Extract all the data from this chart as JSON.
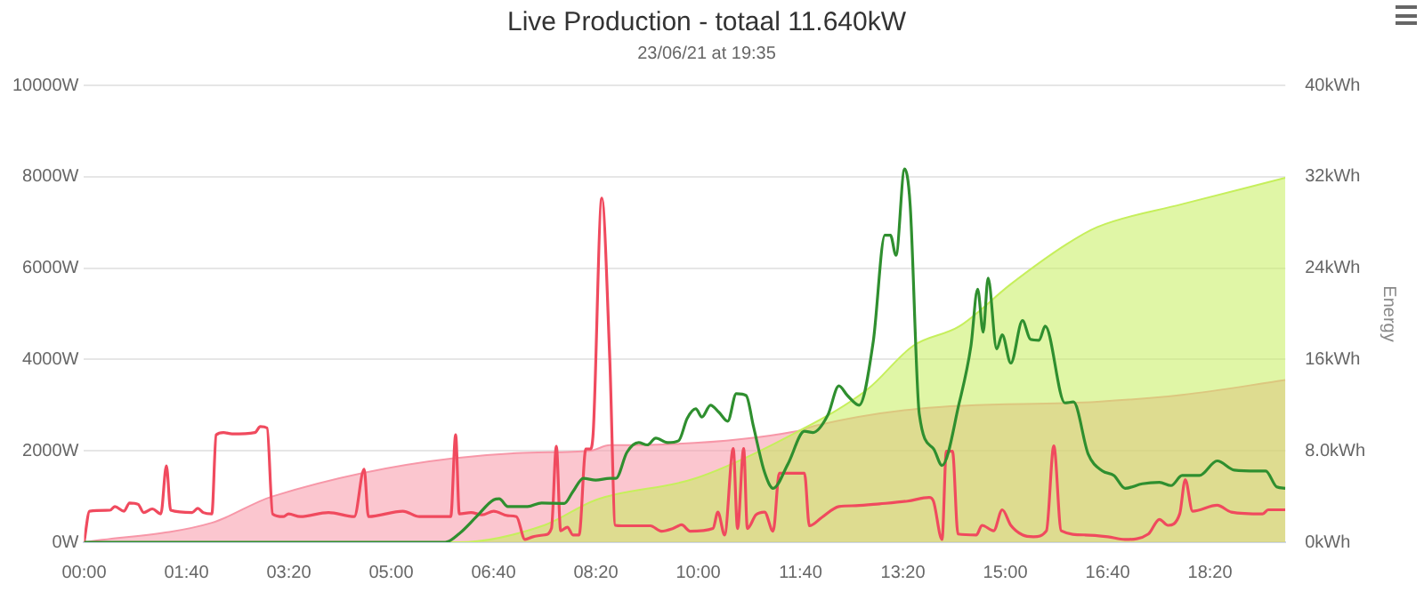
{
  "chart_data": {
    "type": "line",
    "title": "Live Production - totaal 11.640kW",
    "subtitle": "23/06/21 at 19:35",
    "y2label": "Energy",
    "xlim": [
      0,
      19.56
    ],
    "xticks": [
      {
        "value": 0,
        "label": "00:00"
      },
      {
        "value": 1.6667,
        "label": "01:40"
      },
      {
        "value": 3.3333,
        "label": "03:20"
      },
      {
        "value": 5,
        "label": "05:00"
      },
      {
        "value": 6.6667,
        "label": "06:40"
      },
      {
        "value": 8.3333,
        "label": "08:20"
      },
      {
        "value": 10,
        "label": "10:00"
      },
      {
        "value": 11.6667,
        "label": "11:40"
      },
      {
        "value": 13.3333,
        "label": "13:20"
      },
      {
        "value": 15,
        "label": "15:00"
      },
      {
        "value": 16.6667,
        "label": "16:40"
      },
      {
        "value": 18.3333,
        "label": "18:20"
      }
    ],
    "ylim": [
      0,
      10000
    ],
    "yticks": [
      {
        "value": 0,
        "label": "0W"
      },
      {
        "value": 2000,
        "label": "2000W"
      },
      {
        "value": 4000,
        "label": "4000W"
      },
      {
        "value": 6000,
        "label": "6000W"
      },
      {
        "value": 8000,
        "label": "8000W"
      },
      {
        "value": 10000,
        "label": "10000W"
      }
    ],
    "y2lim": [
      0,
      40
    ],
    "y2ticks": [
      {
        "value": 0,
        "label": "0kWh"
      },
      {
        "value": 8,
        "label": "8.0kWh"
      },
      {
        "value": 16,
        "label": "16kWh"
      },
      {
        "value": 24,
        "label": "24kWh"
      },
      {
        "value": 32,
        "label": "32kWh"
      },
      {
        "value": 40,
        "label": "40kWh"
      }
    ],
    "grid": "y",
    "legend": false,
    "marker": "none",
    "line_style": "solid",
    "series": [
      {
        "type": "area",
        "axis": "y2",
        "color": "#f797a8",
        "x": [
          0,
          2.08,
          3.06,
          7.04,
          8.24,
          8.56,
          8.66,
          11.59,
          11.9,
          13.6,
          16.5,
          17.88,
          19.56
        ],
        "values": [
          0,
          1.7,
          4.0,
          7.8,
          8.0,
          8.5,
          8.5,
          9.7,
          10.2,
          11.7,
          12.3,
          12.9,
          14.2
        ]
      },
      {
        "type": "area",
        "axis": "y2",
        "color": "#c6ef5c",
        "x": [
          0,
          5.9,
          6.1,
          7.5,
          8.33,
          9.96,
          11.59,
          12.76,
          13.5,
          14.25,
          15.09,
          16.0,
          16.5,
          17.88,
          19.56
        ],
        "values": [
          0,
          0,
          0,
          1.5,
          3.7,
          5.6,
          9.6,
          13.4,
          17.2,
          18.9,
          22.6,
          26.1,
          27.6,
          29.6,
          31.9
        ]
      },
      {
        "type": "line",
        "color": "#f04a5e",
        "x": [
          0,
          0.09,
          0.42,
          0.5,
          0.65,
          0.74,
          0.88,
          0.97,
          1.11,
          1.25,
          1.34,
          1.41,
          1.76,
          1.85,
          1.94,
          2.08,
          2.15,
          2.27,
          2.41,
          2.78,
          2.87,
          2.98,
          3.07,
          3.24,
          3.33,
          3.52,
          3.98,
          4.4,
          4.56,
          4.63,
          5.19,
          5.46,
          5.97,
          6.05,
          6.11,
          6.3,
          6.48,
          6.67,
          6.9,
          7.04,
          7.18,
          7.31,
          7.5,
          7.61,
          7.69,
          7.76,
          7.87,
          7.96,
          8.06,
          8.17,
          8.24,
          8.29,
          8.43,
          8.56,
          8.65,
          8.75,
          9.22,
          9.4,
          9.59,
          9.73,
          9.87,
          10.24,
          10.32,
          10.43,
          10.57,
          10.64,
          10.74,
          10.8,
          10.94,
          11.08,
          11.22,
          11.32,
          11.73,
          11.81,
          12.01,
          12.29,
          12.57,
          12.95,
          13.41,
          13.76,
          13.83,
          13.97,
          14.04,
          14.14,
          14.23,
          14.53,
          14.62,
          14.81,
          14.95,
          15.09,
          15.28,
          15.46,
          15.67,
          15.79,
          15.91,
          16.3,
          16.67,
          16.95,
          17.33,
          17.51,
          17.65,
          17.84,
          17.93,
          18.05,
          18.45,
          18.68,
          19.19,
          19.28,
          19.56
        ],
        "values": [
          0,
          680,
          700,
          780,
          680,
          860,
          830,
          650,
          730,
          620,
          1670,
          700,
          650,
          740,
          650,
          620,
          2350,
          2400,
          2370,
          2400,
          2530,
          2500,
          620,
          560,
          620,
          560,
          650,
          560,
          1600,
          560,
          680,
          560,
          560,
          2350,
          620,
          650,
          600,
          680,
          580,
          560,
          60,
          120,
          160,
          300,
          2100,
          250,
          330,
          160,
          160,
          2040,
          2040,
          2400,
          7530,
          4000,
          370,
          360,
          360,
          240,
          300,
          380,
          240,
          300,
          660,
          160,
          2050,
          300,
          2050,
          300,
          600,
          660,
          240,
          1510,
          1510,
          360,
          540,
          780,
          800,
          840,
          900,
          980,
          900,
          60,
          1990,
          1990,
          180,
          160,
          370,
          250,
          710,
          370,
          160,
          120,
          250,
          2110,
          250,
          160,
          120,
          60,
          180,
          500,
          370,
          620,
          1370,
          680,
          810,
          660,
          620,
          710,
          710
        ]
      },
      {
        "type": "line",
        "color": "#2f8f2f",
        "x": [
          0,
          5.88,
          6.11,
          6.39,
          6.67,
          6.76,
          6.9,
          7.22,
          7.45,
          7.82,
          7.96,
          8.13,
          8.33,
          8.56,
          8.66,
          8.84,
          9.03,
          9.17,
          9.31,
          9.5,
          9.68,
          9.82,
          9.96,
          10.06,
          10.2,
          10.34,
          10.48,
          10.62,
          10.78,
          10.9,
          11.08,
          11.22,
          11.46,
          11.73,
          11.87,
          12.11,
          12.29,
          12.43,
          12.62,
          12.85,
          13.04,
          13.13,
          13.22,
          13.36,
          13.45,
          13.6,
          13.83,
          13.97,
          14.25,
          14.44,
          14.55,
          14.64,
          14.72,
          14.86,
          14.95,
          15.09,
          15.28,
          15.41,
          15.55,
          15.65,
          15.97,
          16.11,
          16.35,
          16.58,
          16.77,
          16.95,
          17.23,
          17.51,
          17.7,
          17.88,
          18.16,
          18.45,
          18.73,
          19.1,
          19.24,
          19.42,
          19.56
        ],
        "values": [
          0,
          0,
          190,
          560,
          930,
          950,
          780,
          780,
          860,
          850,
          1110,
          1400,
          1360,
          1400,
          1400,
          1970,
          2180,
          2130,
          2280,
          2180,
          2220,
          2710,
          2920,
          2740,
          3000,
          2840,
          2650,
          3250,
          3210,
          2530,
          1530,
          1180,
          1710,
          2430,
          2400,
          2780,
          3420,
          3210,
          3000,
          4390,
          6720,
          6720,
          6280,
          8170,
          7400,
          2800,
          2050,
          1680,
          3050,
          4290,
          5540,
          4600,
          5780,
          4230,
          4540,
          3920,
          4850,
          4440,
          4420,
          4730,
          3050,
          3070,
          1930,
          1560,
          1460,
          1180,
          1280,
          1310,
          1240,
          1460,
          1460,
          1780,
          1580,
          1560,
          1560,
          1210,
          1180
        ]
      }
    ]
  }
}
